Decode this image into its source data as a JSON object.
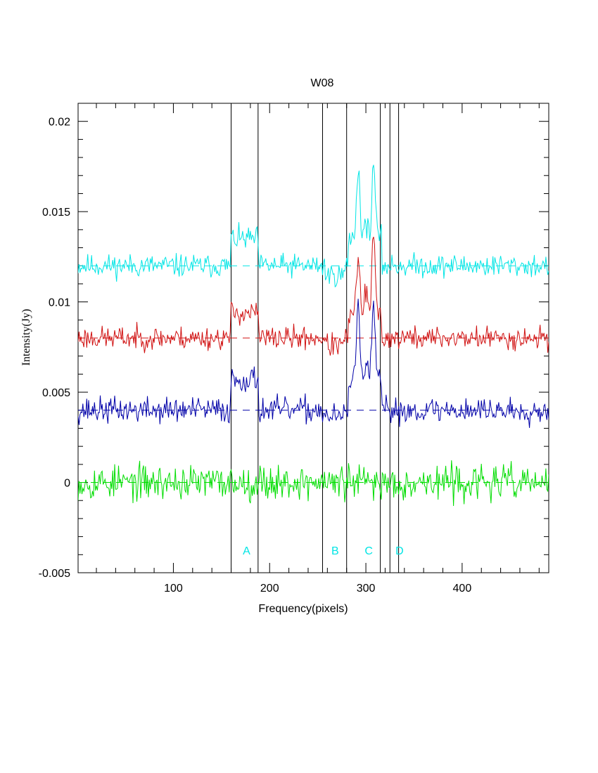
{
  "chart_data": {
    "type": "line",
    "title": "W08",
    "xlabel": "Frequency(pixels)",
    "ylabel": "Intensity(Jy)",
    "xlim": [
      1,
      490
    ],
    "ylim": [
      -0.005,
      0.021
    ],
    "x_ticks": [
      {
        "value": 100,
        "label": "100"
      },
      {
        "value": 200,
        "label": "200"
      },
      {
        "value": 300,
        "label": "300"
      },
      {
        "value": 400,
        "label": "400"
      }
    ],
    "y_ticks": [
      {
        "value": -0.005,
        "label": "-0.005"
      },
      {
        "value": 0,
        "label": "0"
      },
      {
        "value": 0.005,
        "label": "0.005"
      },
      {
        "value": 0.01,
        "label": "0.01"
      },
      {
        "value": 0.015,
        "label": "0.015"
      },
      {
        "value": 0.02,
        "label": "0.02"
      }
    ],
    "vertical_lines": [
      160,
      188,
      255,
      280,
      315,
      325,
      334
    ],
    "regions": [
      {
        "label": "A",
        "x": 176
      },
      {
        "label": "B",
        "x": 268
      },
      {
        "label": "C",
        "x": 303
      },
      {
        "label": "D",
        "x": 335
      }
    ],
    "series": [
      {
        "color": "#00e5e5",
        "baseline": 0.012,
        "noise": 0.0004,
        "seed": 11,
        "features": [
          {
            "x0": 160,
            "x1": 188,
            "value": 0.0135
          },
          {
            "x0": 258,
            "x1": 278,
            "value": 0.0115
          },
          {
            "x0": 282,
            "x1": 316,
            "value": 0.0135,
            "peaks": [
              [
                292,
                0.0175
              ],
              [
                300,
                0.0145
              ],
              [
                308,
                0.0177
              ]
            ]
          }
        ]
      },
      {
        "color": "#d01010",
        "baseline": 0.008,
        "noise": 0.0004,
        "seed": 23,
        "features": [
          {
            "x0": 160,
            "x1": 188,
            "value": 0.0094
          },
          {
            "x0": 258,
            "x1": 278,
            "value": 0.0076
          },
          {
            "x0": 282,
            "x1": 316,
            "value": 0.0092,
            "peaks": [
              [
                292,
                0.0125
              ],
              [
                300,
                0.0106
              ],
              [
                308,
                0.0136
              ]
            ]
          }
        ]
      },
      {
        "color": "#0000a8",
        "baseline": 0.004,
        "noise": 0.00045,
        "seed": 37,
        "features": [
          {
            "x0": 160,
            "x1": 188,
            "value": 0.0057
          },
          {
            "x0": 258,
            "x1": 278,
            "value": 0.0036
          },
          {
            "x0": 282,
            "x1": 316,
            "value": 0.0055,
            "peaks": [
              [
                292,
                0.0104
              ],
              [
                300,
                0.0065
              ],
              [
                308,
                0.0098
              ]
            ]
          }
        ]
      },
      {
        "color": "#00dd00",
        "baseline": 0.0,
        "noise": 0.0006,
        "seed": 53,
        "features": []
      }
    ]
  }
}
